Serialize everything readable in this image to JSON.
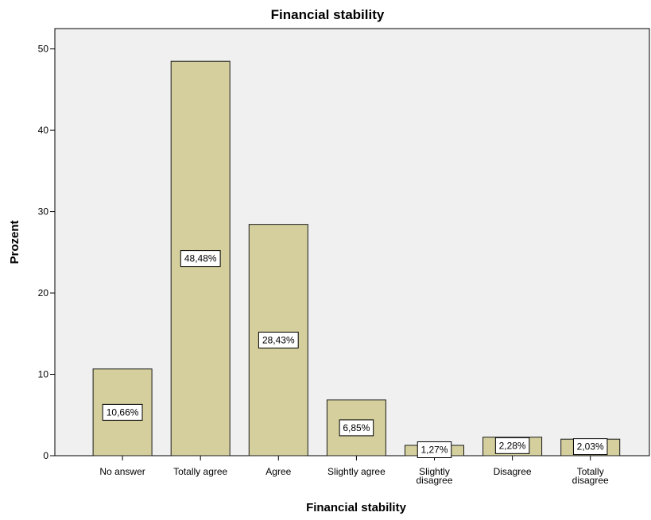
{
  "colors": {
    "plot_background": "#f0f0f0",
    "bar_fill": "#d4cf9d",
    "bar_stroke": "#1a1a1a",
    "label_box_fill": "#ffffff"
  },
  "chart_data": {
    "type": "bar",
    "title": "Financial stability",
    "xlabel": "Financial stability",
    "ylabel": "Prozent",
    "ylim": [
      0,
      52.5
    ],
    "yticks": [
      0,
      10,
      20,
      30,
      40,
      50
    ],
    "grid": false,
    "categories": [
      [
        "No answer"
      ],
      [
        "Totally agree"
      ],
      [
        "Agree"
      ],
      [
        "Slightly agree"
      ],
      [
        "Slightly",
        "disagree"
      ],
      [
        "Disagree"
      ],
      [
        "Totally",
        "disagree"
      ]
    ],
    "values": [
      10.66,
      48.48,
      28.43,
      6.85,
      1.27,
      2.28,
      2.03
    ],
    "data_labels": [
      "10,66%",
      "48,48%",
      "28,43%",
      "6,85%",
      "1,27%",
      "2,28%",
      "2,03%"
    ]
  }
}
